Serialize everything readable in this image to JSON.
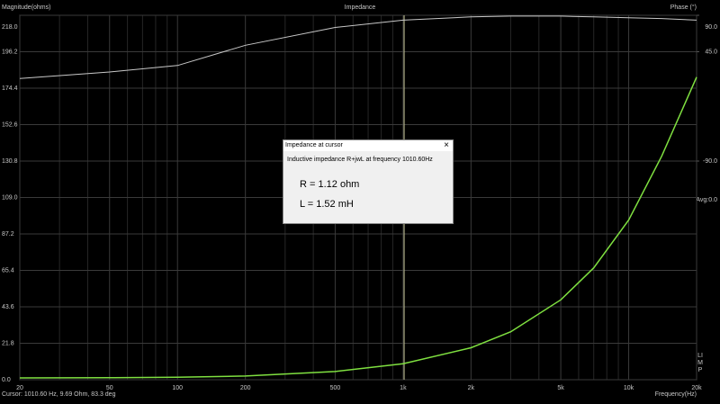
{
  "chart_data": {
    "type": "line",
    "title": "Impedance",
    "ylabel": "Magnitude(ohms)",
    "y2label": "Phase (°)",
    "xlabel": "Frequency(Hz)",
    "log_x": true,
    "x": [
      20,
      50,
      100,
      200,
      500,
      1000,
      2000,
      3000,
      5000,
      7000,
      10000,
      14000,
      20000
    ],
    "xlim": [
      20,
      20000
    ],
    "xticks": [
      20,
      50,
      100,
      200,
      500,
      {
        "value": 1000,
        "label": "1k"
      },
      {
        "value": 2000,
        "label": "2k"
      },
      {
        "value": 5000,
        "label": "5k"
      },
      {
        "value": 10000,
        "label": "10k"
      },
      {
        "value": 20000,
        "label": "20k"
      }
    ],
    "xminor": [
      30,
      40,
      60,
      70,
      80,
      90,
      300,
      400,
      600,
      700,
      800,
      900,
      3000,
      4000,
      6000,
      7000,
      8000,
      9000
    ],
    "ylim": [
      0,
      218
    ],
    "yticks": [
      {
        "value": 0,
        "label": "0.0"
      },
      21.8,
      43.6,
      65.4,
      87.2,
      {
        "value": 109,
        "label": "109.0"
      },
      130.8,
      152.6,
      174.4,
      196.2,
      {
        "value": 218,
        "label": "218.0"
      }
    ],
    "y2lim": [
      -360,
      90
    ],
    "y2ticks": [
      {
        "value": 90,
        "label": "90.0"
      },
      {
        "value": 45,
        "label": "45.0"
      },
      {
        "value": -90,
        "label": "-90.0"
      }
    ],
    "y2_annotation": "Avg:0.0",
    "grid": true,
    "series": [
      {
        "color": "#7fe040",
        "values": [
          1.1,
          1.2,
          1.5,
          2.2,
          4.9,
          9.6,
          19.1,
          28.7,
          47.8,
          66.9,
          95.5,
          133.7,
          181
        ]
      },
      {
        "color": "#c8c8c8",
        "axis": "y2",
        "values": [
          12,
          20,
          28,
          53,
          75,
          84,
          88,
          89,
          89,
          88,
          87,
          86,
          84
        ]
      }
    ],
    "cursor_x": 1010.6,
    "status": "Cursor: 1010.60 Hz, 9.69 Ohm, 83.3 deg",
    "side_label": "LIMP",
    "dialog": {
      "title": "Impedance at cursor",
      "close": "×",
      "text": "Inductive impedance R+jwL at frequency 1010.60Hz",
      "r": "R = 1.12 ohm",
      "l": "L = 1.52 mH"
    }
  }
}
